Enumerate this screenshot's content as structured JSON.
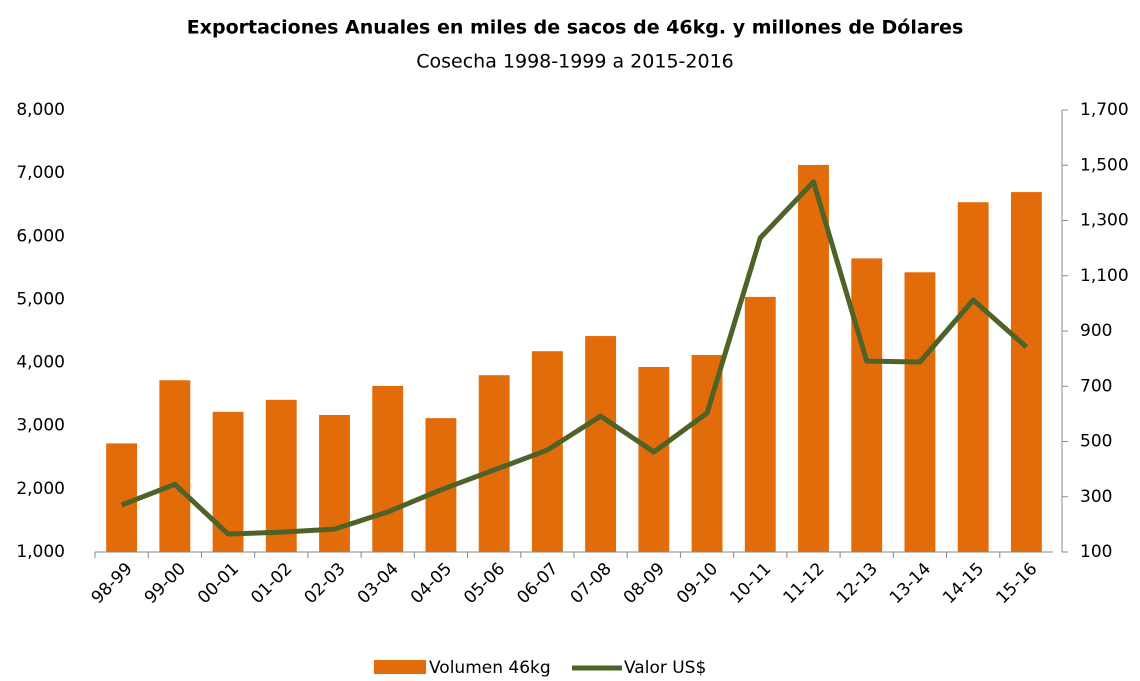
{
  "chart_data": {
    "type": "bar-line",
    "title": "Exportaciones Anuales en miles de sacos de 46kg. y millones de Dólares",
    "subtitle": "Cosecha 1998-1999 a 2015-2016",
    "categories": [
      "98-99",
      "99-00",
      "00-01",
      "01-02",
      "02-03",
      "03-04",
      "04-05",
      "05-06",
      "06-07",
      "07-08",
      "08-09",
      "09-10",
      "10-11",
      "11-12",
      "12-13",
      "13-14",
      "14-15",
      "15-16"
    ],
    "series": [
      {
        "name": "Volumen 46kg",
        "type": "bar",
        "color": "#e36c0a",
        "values": [
          2720,
          3720,
          3220,
          3410,
          3170,
          3630,
          3120,
          3800,
          4180,
          4420,
          3930,
          4120,
          5040,
          7130,
          5650,
          5430,
          6540,
          6700
        ]
      },
      {
        "name": "Valor US$",
        "type": "line",
        "axis": "y2",
        "color": "#4f6228",
        "values": [
          270,
          345,
          165,
          172,
          183,
          245,
          325,
          397,
          469,
          592,
          462,
          603,
          1237,
          1440,
          791,
          788,
          1012,
          842
        ]
      }
    ],
    "ylim": [
      1000,
      8000
    ],
    "yticks": [
      {
        "value": 1000,
        "label": "1,000"
      },
      {
        "value": 2000,
        "label": "2,000"
      },
      {
        "value": 3000,
        "label": "3,000"
      },
      {
        "value": 4000,
        "label": "4,000"
      },
      {
        "value": 5000,
        "label": "5,000"
      },
      {
        "value": 6000,
        "label": "6,000"
      },
      {
        "value": 7000,
        "label": "7,000"
      },
      {
        "value": 8000,
        "label": "8,000"
      }
    ],
    "y2lim": [
      100,
      1700
    ],
    "y2ticks": [
      100,
      300,
      500,
      700,
      900,
      {
        "value": 1100,
        "label": "1,100"
      },
      {
        "value": 1300,
        "label": "1,300"
      },
      {
        "value": 1500,
        "label": "1,500"
      },
      {
        "value": 1700,
        "label": "1,700"
      }
    ],
    "legend": "bottom"
  }
}
